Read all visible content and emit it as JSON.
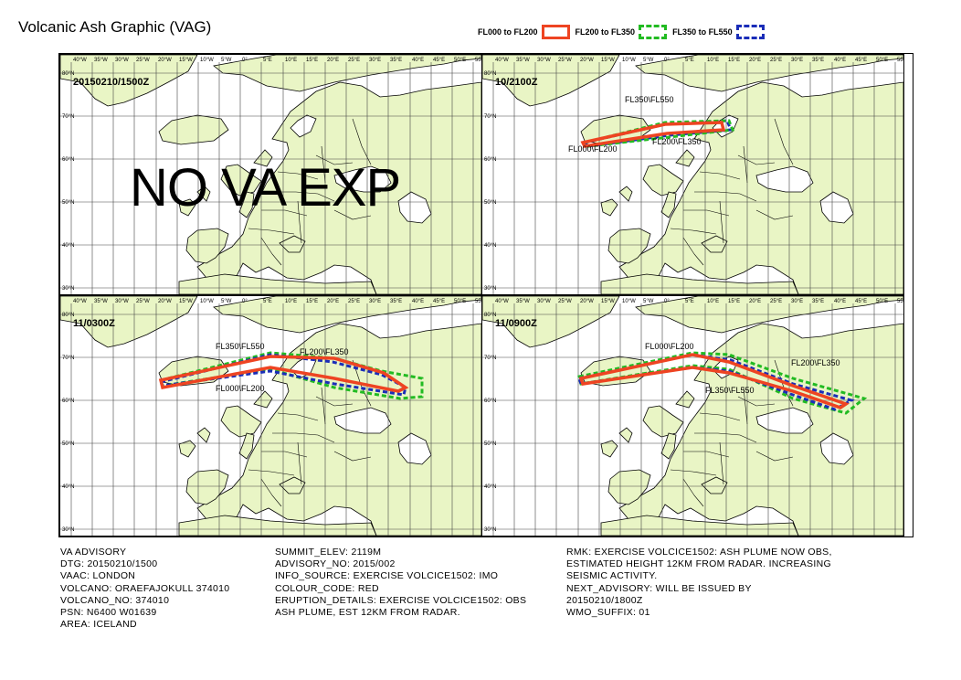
{
  "title": "Volcanic Ash Graphic (VAG)",
  "legend": [
    {
      "label": "FL000 to FL200",
      "color": "#ee4422",
      "style": "solid"
    },
    {
      "label": "FL200 to FL350",
      "color": "#22bb22",
      "style": "dashed"
    },
    {
      "label": "FL350 to FL550",
      "color": "#1a2db8",
      "style": "dashed"
    }
  ],
  "map": {
    "land_color": "#e9f5c5",
    "sea_color": "#ffffff",
    "lon_labels": [
      "40°W",
      "35°W",
      "30°W",
      "25°W",
      "20°W",
      "15°W",
      "10°W",
      "5°W",
      "0°",
      "5°E",
      "10°E",
      "15°E",
      "20°E",
      "25°E",
      "30°E",
      "35°E",
      "40°E",
      "45°E",
      "50°E",
      "55°E"
    ],
    "lat_labels": [
      "80°N",
      "70°N",
      "60°N",
      "50°N",
      "40°N",
      "30°N"
    ]
  },
  "panels": [
    {
      "time": "20150210/1500Z",
      "text": "NO VA EXP",
      "labels": []
    },
    {
      "time": "10/2100Z",
      "text": "",
      "labels": [
        "FL350\\FL550",
        "FL000\\FL200",
        "FL200\\FL350"
      ]
    },
    {
      "time": "11/0300Z",
      "text": "",
      "labels": [
        "FL350\\FL550",
        "FL200\\FL350",
        "FL000\\FL200"
      ]
    },
    {
      "time": "11/0900Z",
      "text": "",
      "labels": [
        "FL000\\FL200",
        "FL200\\FL350",
        "FL350\\FL550"
      ]
    }
  ],
  "advisory": {
    "col1": [
      "VA ADVISORY",
      "DTG: 20150210/1500",
      "VAAC: LONDON",
      "VOLCANO: ORAEFAJOKULL 374010",
      "VOLCANO_NO: 374010",
      "PSN: N6400 W01639",
      "AREA: ICELAND"
    ],
    "col2": [
      "SUMMIT_ELEV: 2119M",
      "ADVISORY_NO: 2015/002",
      "INFO_SOURCE: EXERCISE VOLCICE1502: IMO",
      "COLOUR_CODE: RED",
      "ERUPTION_DETAILS: EXERCISE VOLCICE1502: OBS",
      "ASH PLUME, EST 12KM FROM RADAR."
    ],
    "col3": [
      "RMK: EXERCISE VOLCICE1502: ASH PLUME NOW OBS,",
      "ESTIMATED HEIGHT 12KM FROM RADAR. INCREASING",
      "SEISMIC ACTIVITY.",
      "NEXT_ADVISORY: WILL BE ISSUED BY",
      "20150210/1800Z",
      "WMO_SUFFIX: 01"
    ]
  }
}
